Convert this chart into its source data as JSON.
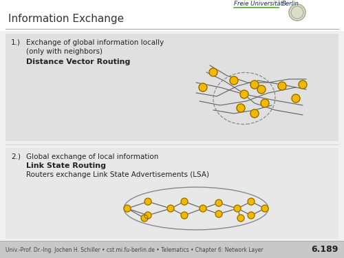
{
  "title": "Information Exchange",
  "bg_color": "#f0f0f0",
  "panel1_bg": "#e0e0e0",
  "panel2_bg": "#e8e8e8",
  "footer_bg": "#c8c8c8",
  "footer_text": "Univ.-Prof. Dr.-Ing. Jochen H. Schiller • cst.mi.fu-berlin.de • Telematics • Chapter 6: Network Layer",
  "footer_number": "6.189",
  "item1_num": "1.)",
  "item1_line1": "Exchange of global information locally",
  "item1_line2": "(only with neighbors)",
  "item1_bold": "Distance Vector Routing",
  "item2_num": "2.)",
  "item2_line1": "Global exchange of local information",
  "item2_bold": "Link State Routing",
  "item2_line2": "Routers exchange Link State Advertisements (LSA)",
  "fu_text": "Freie Universität",
  "fu_text2": "Berlin",
  "node_color": "#f0b800",
  "node_edge": "#806000",
  "line_color": "#666666",
  "dashed_color": "#888888",
  "title_fontsize": 11,
  "body_fontsize": 7.5,
  "bold_fontsize": 7.5,
  "footer_fontsize": 5.5,
  "green_line_color": "#5ab432",
  "fu_color": "#003366",
  "title_color": "#333333",
  "header_line_color": "#aaaaaa",
  "footer_line_color": "#aaaaaa"
}
